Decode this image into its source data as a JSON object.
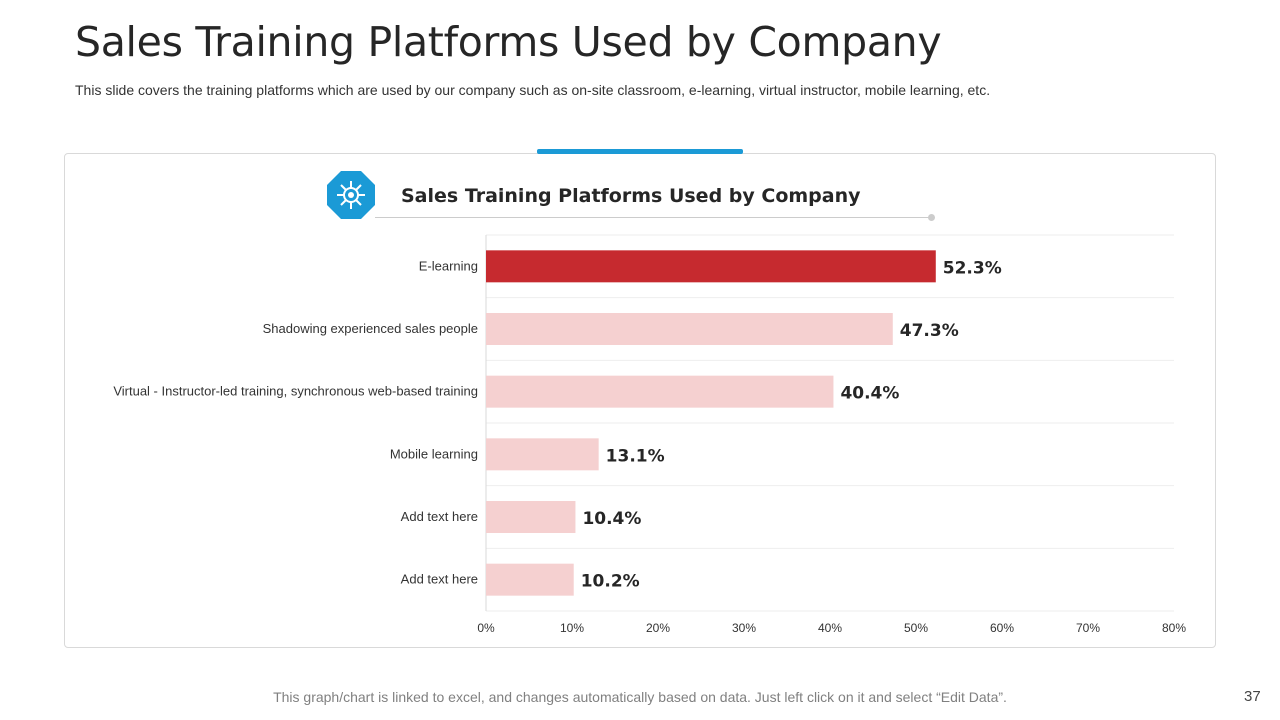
{
  "slide": {
    "title": "Sales Training Platforms Used by Company",
    "subtitle": "This slide covers the training platforms which are used by our company such as on-site classroom, e-learning, virtual instructor, mobile learning, etc.",
    "footer": "This graph/chart is linked to excel, and changes automatically based on data. Just left click on it and select “Edit Data”.",
    "page_number": "37"
  },
  "colors": {
    "accent": "#1b9ad6",
    "highlight_bar": "#c62a2f",
    "bar": "#f5d0d0",
    "badge": "#1b9ad6"
  },
  "icons": {
    "badge": "network-hub-icon"
  },
  "chart_data": {
    "type": "bar",
    "orientation": "horizontal",
    "title": "Sales Training Platforms Used by Company",
    "categories": [
      "E-learning",
      "Shadowing experienced sales people",
      "Virtual - Instructor-led training, synchronous web-based training",
      "Mobile learning",
      "Add text here",
      "Add text here"
    ],
    "values": [
      52.3,
      47.3,
      40.4,
      13.1,
      10.4,
      10.2
    ],
    "value_labels": [
      "52.3%",
      "47.3%",
      "40.4%",
      "13.1%",
      "10.4%",
      "10.2%"
    ],
    "highlight_index": 0,
    "xlim": [
      0,
      80
    ],
    "xticks": [
      0,
      10,
      20,
      30,
      40,
      50,
      60,
      70,
      80
    ],
    "xtick_labels": [
      "0%",
      "10%",
      "20%",
      "30%",
      "40%",
      "50%",
      "60%",
      "70%",
      "80%"
    ],
    "xlabel": "",
    "ylabel": "",
    "grid": true
  }
}
